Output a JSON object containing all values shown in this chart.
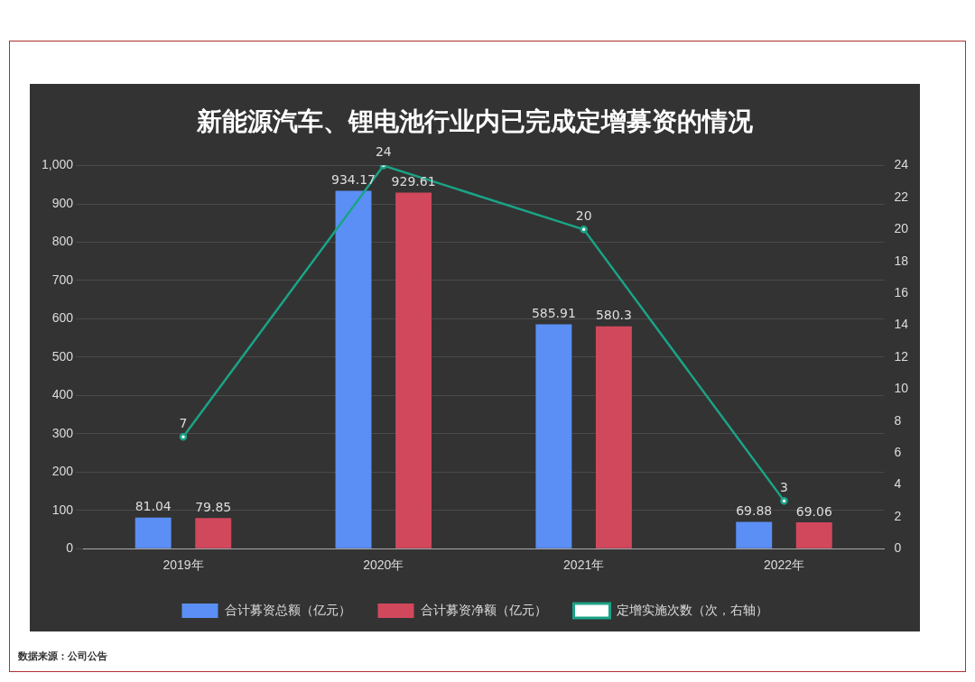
{
  "chart_data": {
    "type": "bar",
    "title": "新能源汽车、锂电池行业内已完成定增募资的情况",
    "categories": [
      "2019年",
      "2020年",
      "2021年",
      "2022年"
    ],
    "series": [
      {
        "name": "合计募资总额（亿元）",
        "color": "#5b8ff5",
        "values": [
          81.04,
          934.17,
          585.91,
          69.88
        ]
      },
      {
        "name": "合计募资净额（亿元）",
        "color": "#d1485c",
        "values": [
          79.85,
          929.61,
          580.3,
          69.06
        ]
      },
      {
        "name": "定增实施次数（次，右轴）",
        "type": "line",
        "axis": "y2",
        "color": "#1ba386",
        "values": [
          7,
          24,
          20,
          3
        ]
      }
    ],
    "ylim": [
      0,
      1000
    ],
    "yticks": [
      0,
      100,
      200,
      300,
      400,
      500,
      600,
      700,
      800,
      900,
      {
        "value": 1000,
        "label": "1,000"
      }
    ],
    "y2lim": [
      0,
      24
    ],
    "y2ticks": [
      0,
      2,
      4,
      6,
      8,
      10,
      12,
      14,
      16,
      18,
      20,
      22,
      24
    ],
    "grid": "y",
    "legend": "bottom",
    "marker": "circle",
    "data_labels": true,
    "annotations": [
      "数据来源：公司公告"
    ]
  }
}
